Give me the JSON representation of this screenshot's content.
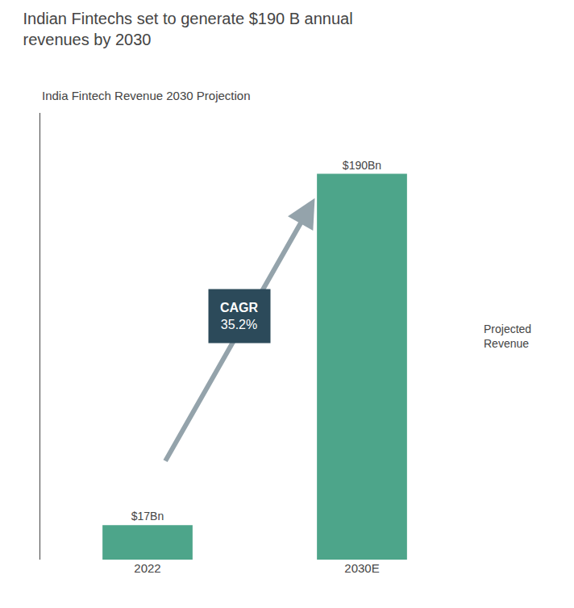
{
  "chart_data": {
    "type": "bar",
    "title": "Indian Fintechs set to generate $190 B annual\nrevenues by 2030",
    "subtitle": "India Fintech Revenue 2030 Projection",
    "categories": [
      "2022",
      "2030E"
    ],
    "values": [
      17,
      190
    ],
    "value_labels": [
      "$17Bn",
      "$190Bn"
    ],
    "data_labels": true,
    "color": "#4DA58A",
    "ylim": [
      0,
      220
    ],
    "tick_labels": "x",
    "grid": false,
    "annotations": [
      {
        "text": "CAGR\n35.2%",
        "color": "#2C4A5A"
      },
      {
        "text": "Projected\nRevenue"
      }
    ]
  }
}
